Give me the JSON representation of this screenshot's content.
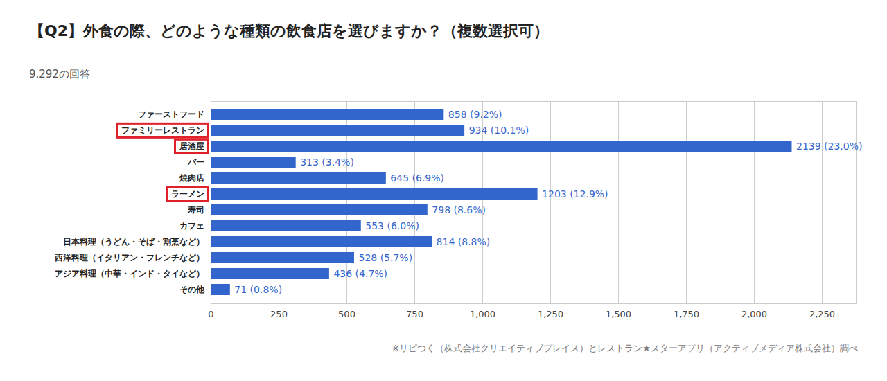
{
  "chart_data": {
    "type": "bar",
    "title": "【Q2】外食の際、どのような種類の飲食店を選びますか？（複数選択可）",
    "subtitle": "9.292の回答",
    "caption": "※リピつく（株式会社クリエイティブプレイス）とレストラン★スターアプリ（アクティブメディア株式会社）調べ",
    "orientation": "horizontal",
    "categories": [
      "ファーストフード",
      "ファミリーレストラン",
      "居酒屋",
      "バー",
      "焼肉店",
      "ラーメン",
      "寿司",
      "カフェ",
      "日本料理（うどん・そば・割烹など）",
      "西洋料理（イタリアン・フレンチなど）",
      "アジア料理（中華・インド・タイなど）",
      "その他"
    ],
    "values": [
      858,
      934,
      2139,
      313,
      645,
      1203,
      798,
      553,
      814,
      528,
      436,
      71
    ],
    "value_labels": [
      "858 (9.2%)",
      "934 (10.1%)",
      "2139 (23.0%)",
      "313 (3.4%)",
      "645 (6.9%)",
      "1203 (12.9%)",
      "798 (8.6%)",
      "553 (6.0%)",
      "814 (8.8%)",
      "528 (5.7%)",
      "436 (4.7%)",
      "71 (0.8%)"
    ],
    "highlighted": [
      "ファミリーレストラン",
      "居酒屋",
      "ラーメン"
    ],
    "color": "#3366cc",
    "data_labels": true,
    "grid": true,
    "xlim": [
      0,
      2375
    ],
    "xticks": [
      0,
      250,
      500,
      750,
      {
        "value": 1000,
        "label": "1,000"
      },
      {
        "value": 1250,
        "label": "1,250"
      },
      {
        "value": 1500,
        "label": "1,500"
      },
      {
        "value": 1750,
        "label": "1,750"
      },
      {
        "value": 2000,
        "label": "2,000"
      },
      {
        "value": 2250,
        "label": "2,250"
      }
    ]
  }
}
